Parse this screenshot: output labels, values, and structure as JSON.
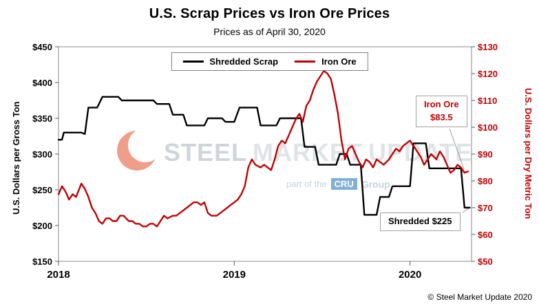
{
  "title": "U.S. Scrap Prices vs Iron Ore Prices",
  "subtitle": "Prices as of April 30, 2020",
  "legend": [
    {
      "label": "Shredded Scrap",
      "color": "#000000"
    },
    {
      "label": "Iron Ore",
      "color": "#c00000"
    }
  ],
  "annotations": {
    "iron_ore": {
      "line1": "Iron Ore",
      "line2": "$83.5"
    },
    "shredded": {
      "text": "Shredded $225"
    }
  },
  "watermark": {
    "steel": "STEEL",
    "market": "MARKET",
    "update": "UPDATE",
    "part_of": "part of the",
    "cru": "CRU",
    "group": "Group",
    "crescent_color": "#e2502a"
  },
  "footer": "© Steel Market Update 2020",
  "colors": {
    "scrap_line": "#000000",
    "iron_ore_line": "#c00000",
    "frame": "#8a8a8a",
    "connector": "#9a9a9a"
  },
  "chart_data": {
    "type": "line",
    "title": "U.S. Scrap Prices vs Iron Ore Prices",
    "subtitle": "Prices as of April 30, 2020",
    "grid": false,
    "legend_position": "top-center-inside",
    "x_range": [
      2018.0,
      2020.35
    ],
    "x_ticks": {
      "values": [
        2018,
        2019,
        2020
      ],
      "labels": [
        "2018",
        "2019",
        "2020"
      ]
    },
    "left_axis": {
      "label": "U.S. Dollars per Gross Ton",
      "min": 150,
      "max": 450,
      "step": 50,
      "tick_labels": [
        "$150",
        "$200",
        "$250",
        "$300",
        "$350",
        "$400",
        "$450"
      ]
    },
    "right_axis": {
      "label": "U.S. Dollars per Dry Metric Ton",
      "min": 50,
      "max": 130,
      "step": 10,
      "tick_labels": [
        "$50",
        "$60",
        "$70",
        "$80",
        "$90",
        "$100",
        "$110",
        "$120",
        "$130"
      ]
    },
    "series": [
      {
        "name": "Shredded Scrap",
        "axis": "left",
        "color": "#000000",
        "last_value": 225,
        "points": [
          [
            2018.0,
            320
          ],
          [
            2018.02,
            320
          ],
          [
            2018.03,
            330
          ],
          [
            2018.13,
            330
          ],
          [
            2018.15,
            328
          ],
          [
            2018.17,
            365
          ],
          [
            2018.22,
            365
          ],
          [
            2018.25,
            380
          ],
          [
            2018.34,
            380
          ],
          [
            2018.36,
            375
          ],
          [
            2018.54,
            375
          ],
          [
            2018.56,
            370
          ],
          [
            2018.63,
            370
          ],
          [
            2018.65,
            355
          ],
          [
            2018.71,
            355
          ],
          [
            2018.73,
            340
          ],
          [
            2018.83,
            340
          ],
          [
            2018.85,
            350
          ],
          [
            2018.93,
            350
          ],
          [
            2018.95,
            345
          ],
          [
            2019.0,
            345
          ],
          [
            2019.03,
            365
          ],
          [
            2019.13,
            365
          ],
          [
            2019.15,
            340
          ],
          [
            2019.24,
            340
          ],
          [
            2019.26,
            350
          ],
          [
            2019.38,
            350
          ],
          [
            2019.4,
            310
          ],
          [
            2019.46,
            310
          ],
          [
            2019.48,
            285
          ],
          [
            2019.58,
            285
          ],
          [
            2019.6,
            300
          ],
          [
            2019.64,
            300
          ],
          [
            2019.66,
            285
          ],
          [
            2019.72,
            285
          ],
          [
            2019.74,
            215
          ],
          [
            2019.81,
            215
          ],
          [
            2019.83,
            240
          ],
          [
            2019.88,
            240
          ],
          [
            2019.9,
            255
          ],
          [
            2020.0,
            255
          ],
          [
            2020.02,
            315
          ],
          [
            2020.09,
            315
          ],
          [
            2020.11,
            280
          ],
          [
            2020.29,
            280
          ],
          [
            2020.31,
            225
          ],
          [
            2020.34,
            225
          ]
        ]
      },
      {
        "name": "Iron Ore",
        "axis": "right",
        "color": "#c00000",
        "last_value": 83.5,
        "points": [
          [
            2018.0,
            75
          ],
          [
            2018.02,
            78
          ],
          [
            2018.04,
            76
          ],
          [
            2018.06,
            73
          ],
          [
            2018.08,
            75
          ],
          [
            2018.1,
            74
          ],
          [
            2018.13,
            79
          ],
          [
            2018.15,
            77
          ],
          [
            2018.17,
            74
          ],
          [
            2018.19,
            70
          ],
          [
            2018.21,
            68
          ],
          [
            2018.23,
            65
          ],
          [
            2018.25,
            64
          ],
          [
            2018.27,
            66
          ],
          [
            2018.29,
            66
          ],
          [
            2018.31,
            65
          ],
          [
            2018.33,
            65
          ],
          [
            2018.35,
            67
          ],
          [
            2018.37,
            67
          ],
          [
            2018.4,
            65
          ],
          [
            2018.42,
            65
          ],
          [
            2018.44,
            64
          ],
          [
            2018.46,
            64
          ],
          [
            2018.48,
            63
          ],
          [
            2018.5,
            63
          ],
          [
            2018.52,
            64
          ],
          [
            2018.54,
            64
          ],
          [
            2018.56,
            63
          ],
          [
            2018.58,
            65
          ],
          [
            2018.6,
            67
          ],
          [
            2018.62,
            66
          ],
          [
            2018.65,
            67
          ],
          [
            2018.67,
            67
          ],
          [
            2018.69,
            68
          ],
          [
            2018.71,
            69
          ],
          [
            2018.73,
            70
          ],
          [
            2018.75,
            71
          ],
          [
            2018.77,
            72
          ],
          [
            2018.79,
            72
          ],
          [
            2018.81,
            71
          ],
          [
            2018.83,
            72
          ],
          [
            2018.85,
            68
          ],
          [
            2018.87,
            67
          ],
          [
            2018.9,
            67
          ],
          [
            2018.92,
            68
          ],
          [
            2018.94,
            69
          ],
          [
            2018.96,
            70
          ],
          [
            2018.98,
            71
          ],
          [
            2019.0,
            72
          ],
          [
            2019.02,
            73
          ],
          [
            2019.04,
            75
          ],
          [
            2019.06,
            78
          ],
          [
            2019.08,
            85
          ],
          [
            2019.1,
            88
          ],
          [
            2019.12,
            86
          ],
          [
            2019.15,
            85
          ],
          [
            2019.17,
            86
          ],
          [
            2019.19,
            85
          ],
          [
            2019.21,
            84
          ],
          [
            2019.23,
            88
          ],
          [
            2019.25,
            93
          ],
          [
            2019.27,
            95
          ],
          [
            2019.29,
            94
          ],
          [
            2019.31,
            97
          ],
          [
            2019.33,
            100
          ],
          [
            2019.35,
            103
          ],
          [
            2019.37,
            105
          ],
          [
            2019.39,
            102
          ],
          [
            2019.41,
            108
          ],
          [
            2019.43,
            110
          ],
          [
            2019.45,
            114
          ],
          [
            2019.47,
            117
          ],
          [
            2019.49,
            119
          ],
          [
            2019.51,
            121
          ],
          [
            2019.53,
            120
          ],
          [
            2019.55,
            118
          ],
          [
            2019.57,
            112
          ],
          [
            2019.59,
            105
          ],
          [
            2019.61,
            95
          ],
          [
            2019.63,
            88
          ],
          [
            2019.65,
            92
          ],
          [
            2019.67,
            93
          ],
          [
            2019.69,
            90
          ],
          [
            2019.71,
            87
          ],
          [
            2019.73,
            85
          ],
          [
            2019.75,
            88
          ],
          [
            2019.77,
            87
          ],
          [
            2019.79,
            85
          ],
          [
            2019.81,
            88
          ],
          [
            2019.83,
            87
          ],
          [
            2019.85,
            86
          ],
          [
            2019.88,
            88
          ],
          [
            2019.9,
            90
          ],
          [
            2019.92,
            92
          ],
          [
            2019.94,
            91
          ],
          [
            2019.96,
            93
          ],
          [
            2019.98,
            94
          ],
          [
            2020.0,
            95
          ],
          [
            2020.02,
            93
          ],
          [
            2020.04,
            91
          ],
          [
            2020.06,
            89
          ],
          [
            2020.08,
            86
          ],
          [
            2020.1,
            88
          ],
          [
            2020.12,
            90
          ],
          [
            2020.15,
            88
          ],
          [
            2020.17,
            91
          ],
          [
            2020.19,
            89
          ],
          [
            2020.21,
            86
          ],
          [
            2020.23,
            83
          ],
          [
            2020.25,
            84
          ],
          [
            2020.27,
            86
          ],
          [
            2020.29,
            85
          ],
          [
            2020.31,
            83
          ],
          [
            2020.33,
            83.5
          ]
        ]
      }
    ]
  }
}
